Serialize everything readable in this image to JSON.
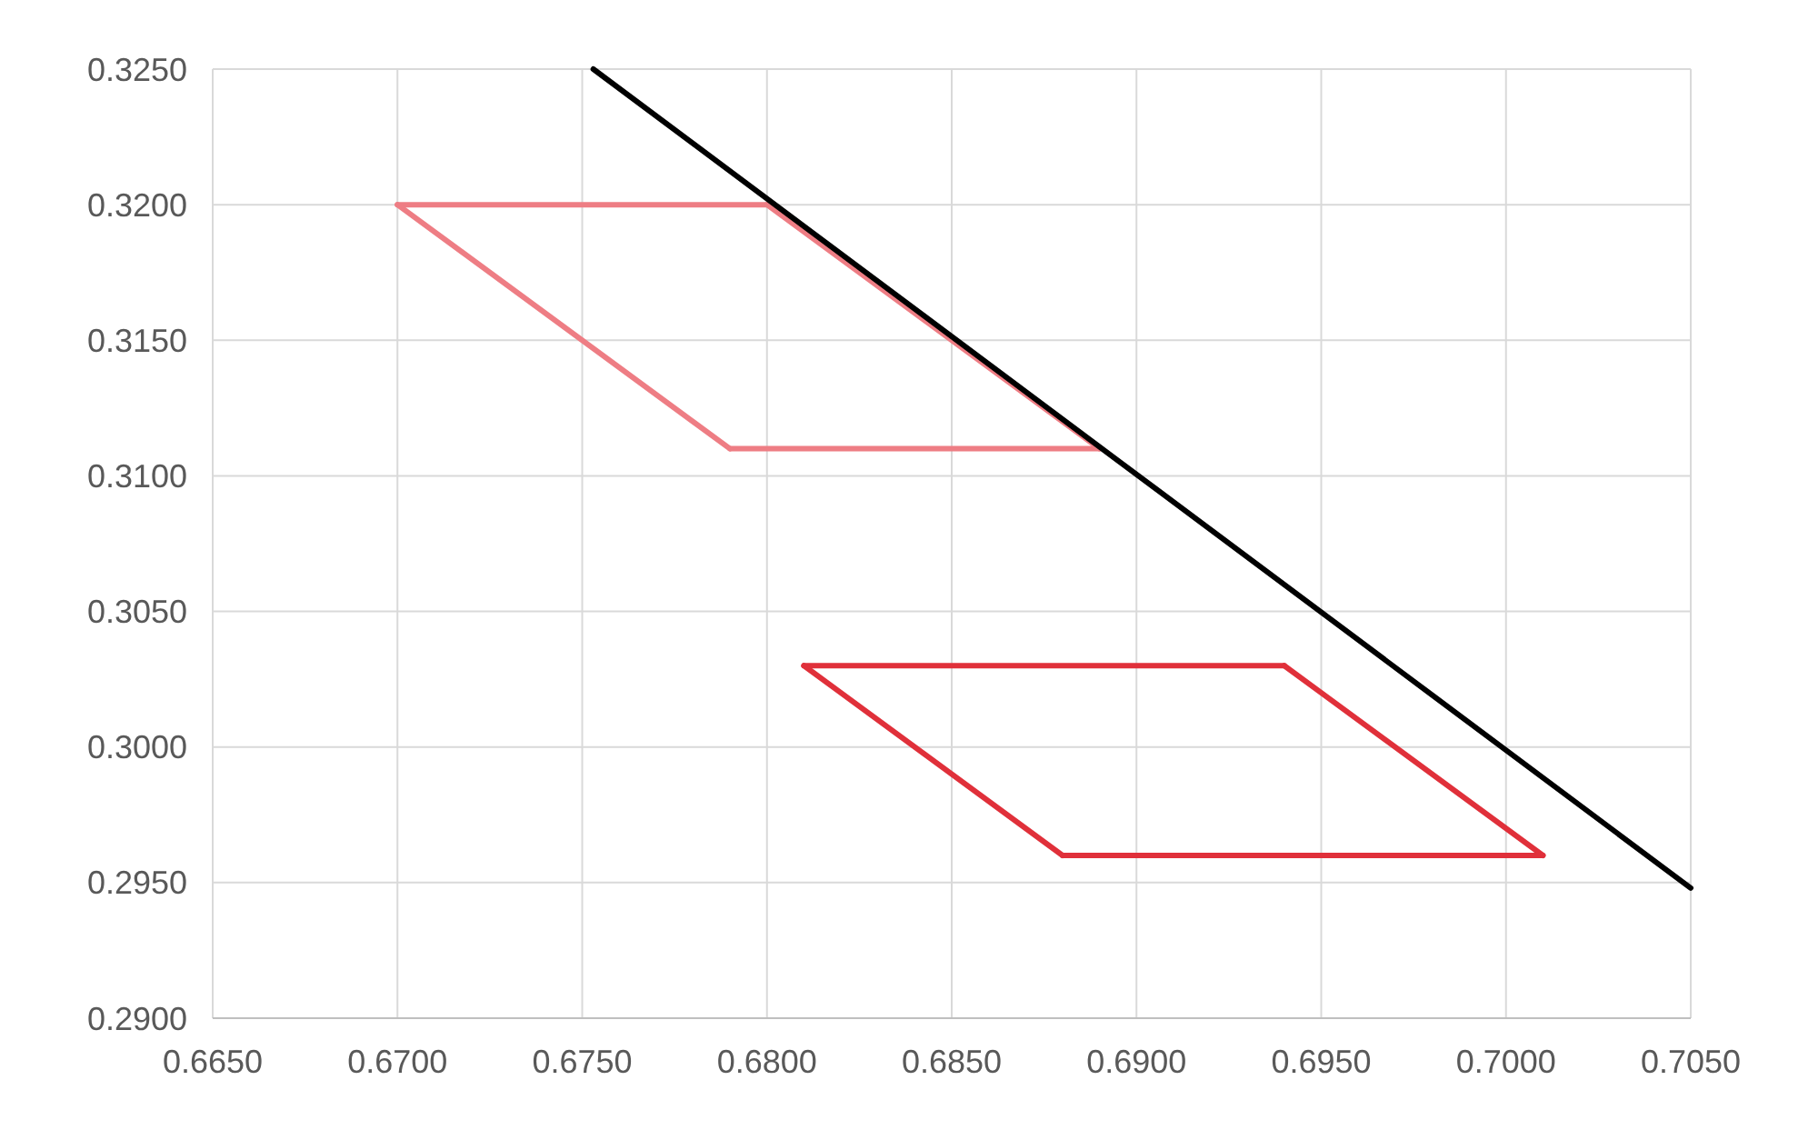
{
  "chart_data": {
    "type": "line",
    "xlim": [
      0.665,
      0.705
    ],
    "ylim": [
      0.29,
      0.325
    ],
    "xticks": [
      {
        "value": 0.665,
        "label": "0.6650"
      },
      {
        "value": 0.67,
        "label": "0.6700"
      },
      {
        "value": 0.675,
        "label": "0.6750"
      },
      {
        "value": 0.68,
        "label": "0.6800"
      },
      {
        "value": 0.685,
        "label": "0.6850"
      },
      {
        "value": 0.69,
        "label": "0.6900"
      },
      {
        "value": 0.695,
        "label": "0.6950"
      },
      {
        "value": 0.7,
        "label": "0.7000"
      },
      {
        "value": 0.705,
        "label": "0.7050"
      }
    ],
    "yticks": [
      {
        "value": 0.29,
        "label": "0.2900"
      },
      {
        "value": 0.295,
        "label": "0.2950"
      },
      {
        "value": 0.3,
        "label": "0.3000"
      },
      {
        "value": 0.305,
        "label": "0.3050"
      },
      {
        "value": 0.31,
        "label": "0.3100"
      },
      {
        "value": 0.315,
        "label": "0.3150"
      },
      {
        "value": 0.32,
        "label": "0.3200"
      },
      {
        "value": 0.325,
        "label": "0.3250"
      }
    ],
    "grid": true,
    "line_style": "solid",
    "series": [
      {
        "color": "#ee7d84",
        "x": [
          0.67,
          0.68
        ],
        "values": [
          0.32,
          0.32
        ]
      },
      {
        "color": "#ee7d84",
        "x": [
          0.68,
          0.689
        ],
        "values": [
          0.32,
          0.311
        ]
      },
      {
        "color": "#ee7d84",
        "x": [
          0.679,
          0.689
        ],
        "values": [
          0.311,
          0.311
        ]
      },
      {
        "color": "#ee7d84",
        "x": [
          0.67,
          0.679
        ],
        "values": [
          0.32,
          0.311
        ]
      },
      {
        "color": "#e0303a",
        "x": [
          0.681,
          0.694
        ],
        "values": [
          0.303,
          0.303
        ]
      },
      {
        "color": "#e0303a",
        "x": [
          0.694,
          0.701
        ],
        "values": [
          0.303,
          0.296
        ]
      },
      {
        "color": "#e0303a",
        "x": [
          0.688,
          0.701
        ],
        "values": [
          0.296,
          0.296
        ]
      },
      {
        "color": "#e0303a",
        "x": [
          0.681,
          0.688
        ],
        "values": [
          0.303,
          0.296
        ]
      },
      {
        "color": "#000000",
        "x": [
          0.6753,
          0.705
        ],
        "values": [
          0.325,
          0.2948
        ]
      }
    ]
  }
}
